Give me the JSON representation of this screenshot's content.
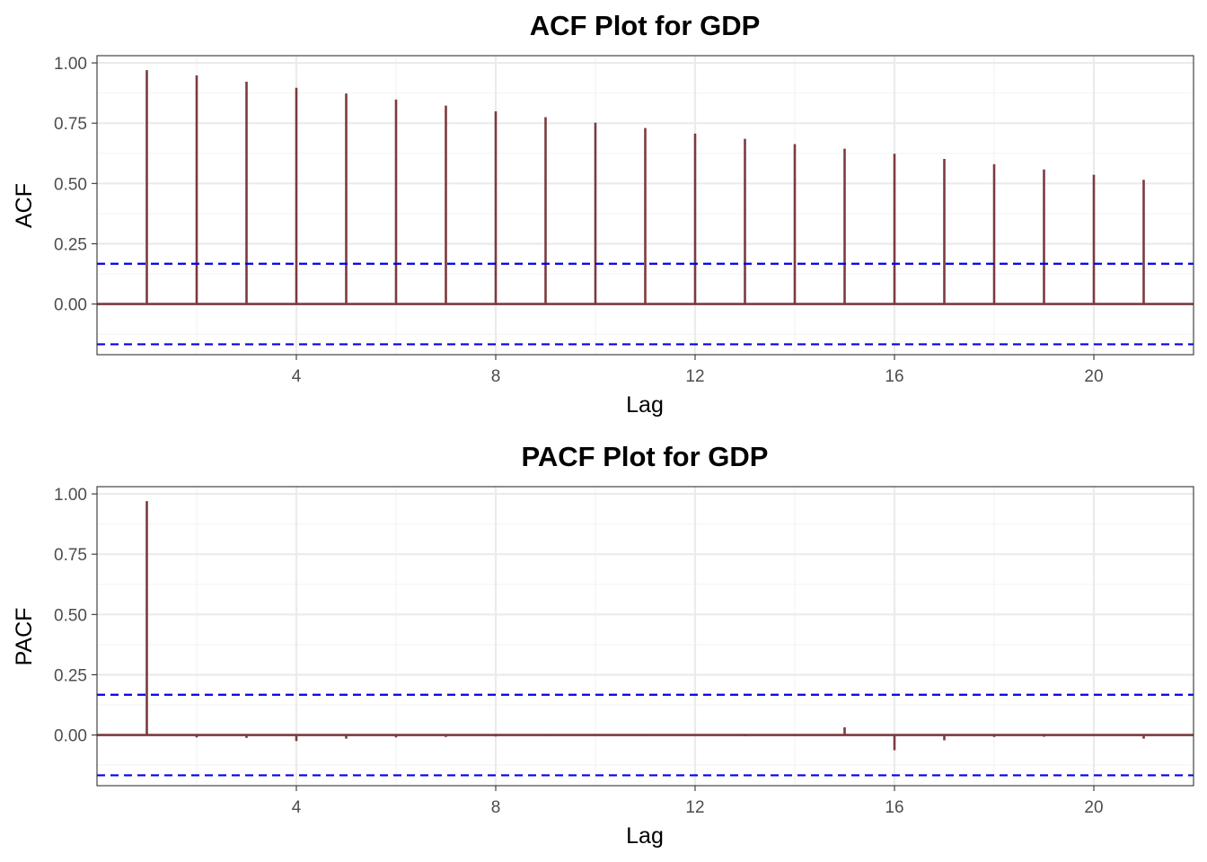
{
  "chart_data": [
    {
      "type": "bar",
      "title": "ACF Plot for GDP",
      "xlabel": "Lag",
      "ylabel": "ACF",
      "x": [
        1,
        2,
        3,
        4,
        5,
        6,
        7,
        8,
        9,
        10,
        11,
        12,
        13,
        14,
        15,
        16,
        17,
        18,
        19,
        20,
        21
      ],
      "values": [
        0.97,
        0.948,
        0.922,
        0.897,
        0.873,
        0.848,
        0.823,
        0.799,
        0.775,
        0.752,
        0.73,
        0.707,
        0.685,
        0.663,
        0.644,
        0.623,
        0.602,
        0.58,
        0.558,
        0.536,
        0.515
      ],
      "confidence_bound": 0.167,
      "xlim": [
        0,
        22
      ],
      "ylim": [
        -0.21,
        1.03
      ],
      "xticks": [
        4,
        8,
        12,
        16,
        20
      ],
      "yticks": [
        0,
        0.25,
        0.5,
        0.75,
        1.0
      ],
      "xtick_labels": [
        "4",
        "8",
        "12",
        "16",
        "20"
      ],
      "ytick_labels": [
        "0.00",
        "0.25",
        "0.50",
        "0.75",
        "1.00"
      ],
      "grid": true,
      "colors": {
        "bar": "#7b3b3f",
        "bound": "#0000ee",
        "panel_border": "#333333",
        "grid_major": "#ebebeb",
        "grid_minor": "#f3f3f3"
      }
    },
    {
      "type": "bar",
      "title": "PACF Plot for GDP",
      "xlabel": "Lag",
      "ylabel": "PACF",
      "x": [
        1,
        2,
        3,
        4,
        5,
        6,
        7,
        8,
        9,
        10,
        11,
        12,
        13,
        14,
        15,
        16,
        17,
        18,
        19,
        20,
        21
      ],
      "values": [
        0.97,
        -0.01,
        -0.012,
        -0.025,
        -0.015,
        -0.01,
        -0.008,
        -0.006,
        -0.004,
        0.003,
        -0.004,
        -0.003,
        -0.005,
        -0.004,
        0.032,
        -0.063,
        -0.022,
        -0.008,
        -0.007,
        -0.002,
        -0.015
      ],
      "confidence_bound": 0.167,
      "xlim": [
        0,
        22
      ],
      "ylim": [
        -0.21,
        1.03
      ],
      "xticks": [
        4,
        8,
        12,
        16,
        20
      ],
      "yticks": [
        0,
        0.25,
        0.5,
        0.75,
        1.0
      ],
      "xtick_labels": [
        "4",
        "8",
        "12",
        "16",
        "20"
      ],
      "ytick_labels": [
        "0.00",
        "0.25",
        "0.50",
        "0.75",
        "1.00"
      ],
      "grid": true,
      "colors": {
        "bar": "#7b3b3f",
        "bound": "#0000ee",
        "panel_border": "#333333",
        "grid_major": "#ebebeb",
        "grid_minor": "#f3f3f3"
      }
    }
  ]
}
